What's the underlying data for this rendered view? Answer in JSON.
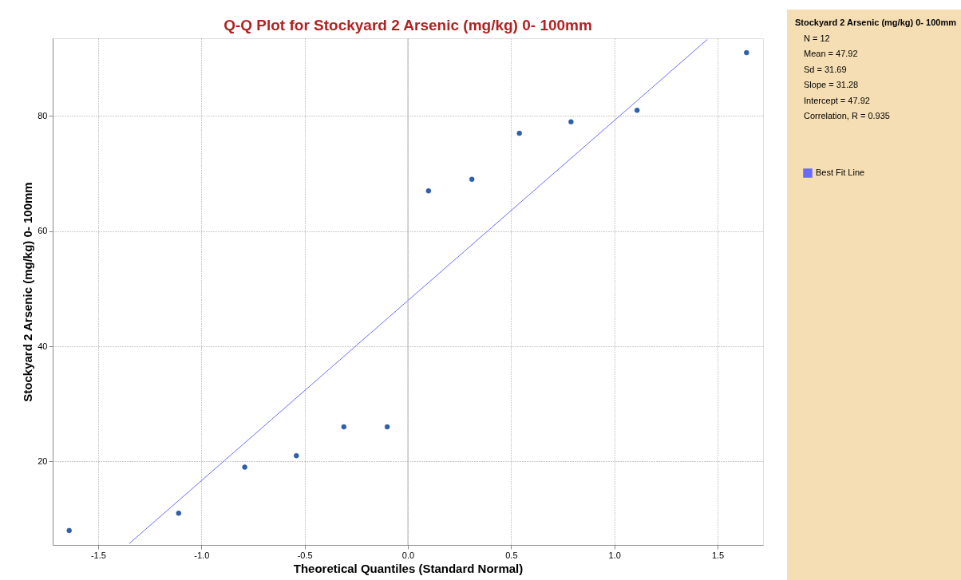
{
  "chart_data": {
    "type": "scatter",
    "title": "Q-Q Plot for Stockyard 2 Arsenic (mg/kg) 0- 100mm",
    "xlabel": "Theoretical Quantiles (Standard Normal)",
    "ylabel": "Stockyard 2 Arsenic (mg/kg) 0- 100mm",
    "x": [
      -1.64,
      -1.11,
      -0.79,
      -0.54,
      -0.31,
      -0.1,
      0.1,
      0.31,
      0.54,
      0.79,
      1.11,
      1.64
    ],
    "series": [
      {
        "color": "#2e5fa8",
        "marker": "circle",
        "values": [
          8,
          11,
          19,
          21,
          26,
          26,
          67,
          69,
          77,
          79,
          81,
          91
        ]
      },
      {
        "type": "line",
        "name": "Best Fit Line",
        "color": "#6a6aff",
        "x": [
          -1.35,
          1.45
        ],
        "values": [
          5.7,
          93.3
        ]
      }
    ],
    "xlim": [
      -1.72,
      1.72
    ],
    "ylim": [
      5.5,
      93.5
    ],
    "xticks": [
      -1.5,
      {
        "value": -1,
        "label": "-1.0"
      },
      -0.5,
      {
        "value": 0,
        "label": "0.0"
      },
      0.5,
      {
        "value": 1,
        "label": "1.0"
      },
      1.5
    ],
    "yticks": [
      20,
      40,
      60,
      80
    ],
    "grid": true,
    "legend": "right",
    "ref_lines": [
      {
        "axis": "x",
        "value": 0,
        "color": "#b4b4b4"
      }
    ],
    "annotations": [
      "Stockyard 2 Arsenic (mg/kg) 0- 100mm",
      "N = 12",
      "Mean = 47.92",
      "Sd = 31.69",
      "Slope = 31.28",
      "Intercept = 47.92",
      "Correlation, R = 0.935"
    ]
  }
}
